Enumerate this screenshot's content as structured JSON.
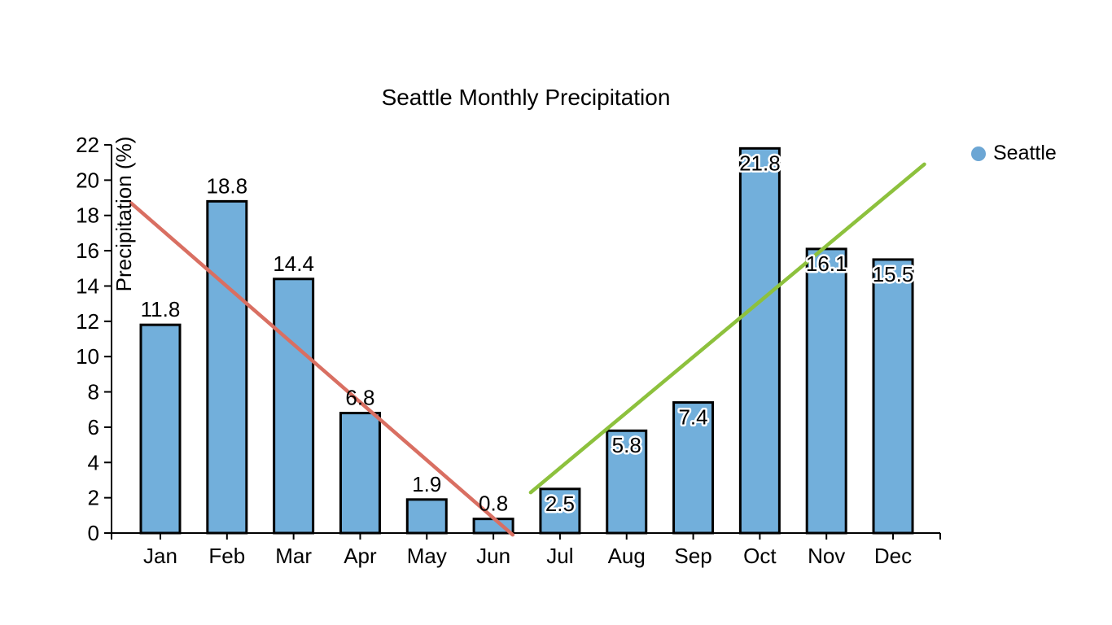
{
  "chart_data": {
    "type": "bar",
    "title": "Seattle Monthly Precipitation",
    "xlabel": "",
    "ylabel": "Precipitation (%)",
    "categories": [
      "Jan",
      "Feb",
      "Mar",
      "Apr",
      "May",
      "Jun",
      "Jul",
      "Aug",
      "Sep",
      "Oct",
      "Nov",
      "Dec"
    ],
    "series": [
      {
        "name": "Seattle",
        "values": [
          11.8,
          18.8,
          14.4,
          6.8,
          1.9,
          0.8,
          2.5,
          5.8,
          7.4,
          21.8,
          16.1,
          15.5
        ]
      }
    ],
    "data_labels": [
      "11.8",
      "18.8",
      "14.4",
      "6.8",
      "1.9",
      "0.8",
      "2.5",
      "5.8",
      "7.4",
      "21.8",
      "16.1",
      "15.5"
    ],
    "label_placement": [
      "above",
      "above",
      "above",
      "above",
      "above",
      "above",
      "inside",
      "inside",
      "inside",
      "inside",
      "inside",
      "inside"
    ],
    "y_ticks": [
      0,
      2,
      4,
      6,
      8,
      10,
      12,
      14,
      16,
      18,
      20,
      22
    ],
    "ylim": [
      0,
      22
    ],
    "grid": false,
    "legend": {
      "position": "top-right",
      "entries": [
        {
          "label": "Seattle",
          "marker": "circle",
          "color": "#6CA6D4"
        }
      ]
    },
    "trend_lines": [
      {
        "name": "jan-jun-declining-trend",
        "color": "#D96F62",
        "x": [
          -0.44,
          5.29
        ],
        "y": [
          18.7,
          -0.1
        ]
      },
      {
        "name": "jul-dec-rising-trend",
        "color": "#8DC13D",
        "x": [
          5.56,
          11.47
        ],
        "y": [
          2.3,
          20.9
        ]
      }
    ],
    "colors": {
      "bar_fill": "#72AFDB",
      "bar_edge": "#000000",
      "axis": "#000000",
      "text": "#000000"
    }
  }
}
